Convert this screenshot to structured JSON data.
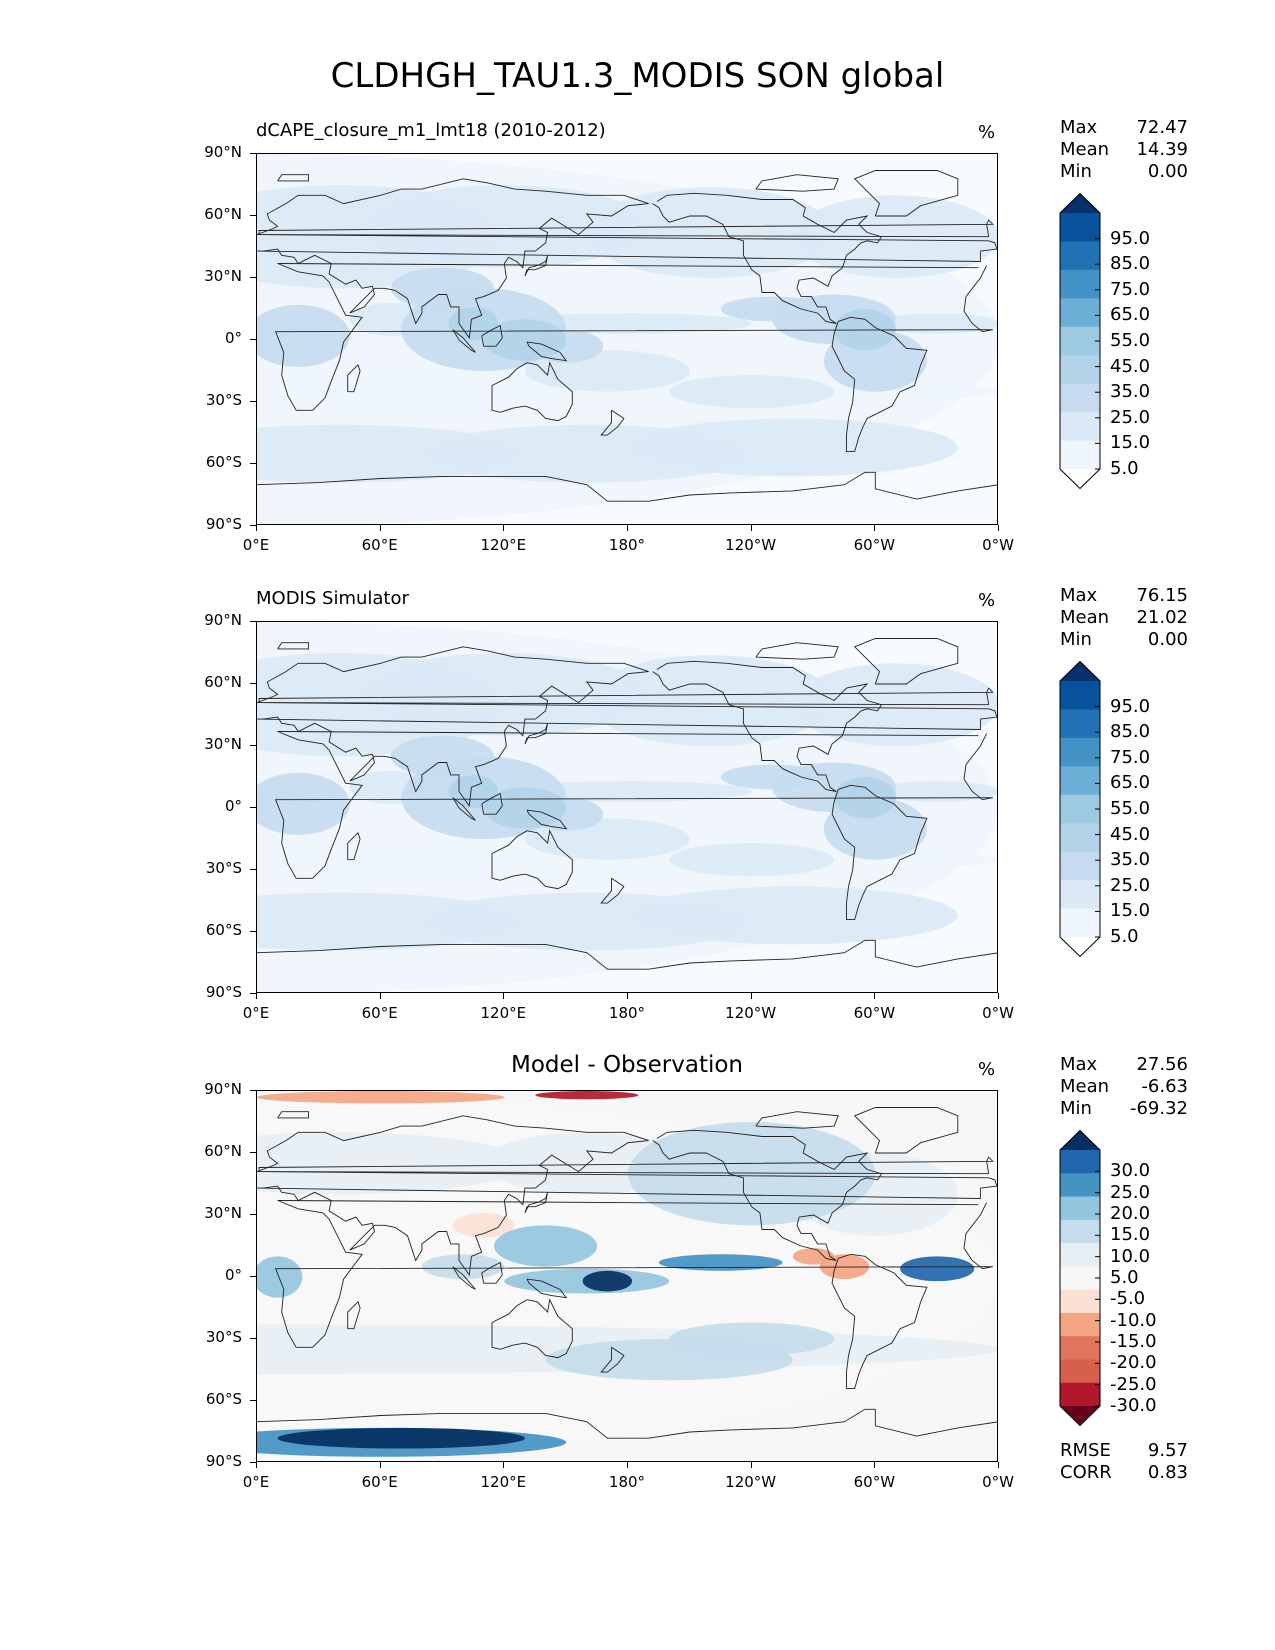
{
  "figure_title": "CLDHGH_TAU1.3_MODIS SON global",
  "axes": {
    "lat_labels": [
      "90°N",
      "60°N",
      "30°N",
      "0°",
      "30°S",
      "60°S",
      "90°S"
    ],
    "lon_labels": [
      "0°E",
      "60°E",
      "120°E",
      "180°",
      "120°W",
      "60°W",
      "0°W"
    ]
  },
  "panels": [
    {
      "title_left": "dCAPE_closure_m1_lmt18 (2010-2012)",
      "title_center": "",
      "units": "%",
      "stats": [
        {
          "label": "Max",
          "value": "72.47"
        },
        {
          "label": "Mean",
          "value": "14.39"
        },
        {
          "label": "Min",
          "value": "0.00"
        }
      ],
      "colorbar_labels": [
        "95.0",
        "85.0",
        "75.0",
        "65.0",
        "55.0",
        "45.0",
        "35.0",
        "25.0",
        "15.0",
        "5.0"
      ],
      "colorbar_colors": [
        "#08306b",
        "#08519c",
        "#2171b5",
        "#4292c6",
        "#6baed6",
        "#9ecae1",
        "#b2d2e8",
        "#c6dbef",
        "#dbe9f6",
        "#eff5fc",
        "#ffffff"
      ],
      "map_palette": "sequential-blue"
    },
    {
      "title_left": "MODIS Simulator",
      "title_center": "",
      "units": "%",
      "stats": [
        {
          "label": "Max",
          "value": "76.15"
        },
        {
          "label": "Mean",
          "value": "21.02"
        },
        {
          "label": "Min",
          "value": "0.00"
        }
      ],
      "colorbar_labels": [
        "95.0",
        "85.0",
        "75.0",
        "65.0",
        "55.0",
        "45.0",
        "35.0",
        "25.0",
        "15.0",
        "5.0"
      ],
      "colorbar_colors": [
        "#08306b",
        "#08519c",
        "#2171b5",
        "#4292c6",
        "#6baed6",
        "#9ecae1",
        "#b2d2e8",
        "#c6dbef",
        "#dbe9f6",
        "#eff5fc",
        "#ffffff"
      ],
      "map_palette": "sequential-blue"
    },
    {
      "title_left": "",
      "title_center": "Model - Observation",
      "units": "%",
      "stats": [
        {
          "label": "Max",
          "value": "27.56"
        },
        {
          "label": "Mean",
          "value": "-6.63"
        },
        {
          "label": "Min",
          "value": "-69.32"
        }
      ],
      "colorbar_labels": [
        "30.0",
        "25.0",
        "20.0",
        "15.0",
        "10.0",
        "5.0",
        "-5.0",
        "-10.0",
        "-15.0",
        "-20.0",
        "-25.0",
        "-30.0"
      ],
      "colorbar_colors": [
        "#053061",
        "#2166ac",
        "#4393c3",
        "#92c5de",
        "#c4dcec",
        "#e6eff5",
        "#f7f7f7",
        "#fbe1d4",
        "#f4a582",
        "#e0765e",
        "#d6604d",
        "#b2182b",
        "#67001f"
      ],
      "map_palette": "diverging-red-blue",
      "bottom_stats": [
        {
          "label": "RMSE",
          "value": "9.57"
        },
        {
          "label": "CORR",
          "value": "0.83"
        }
      ]
    }
  ]
}
